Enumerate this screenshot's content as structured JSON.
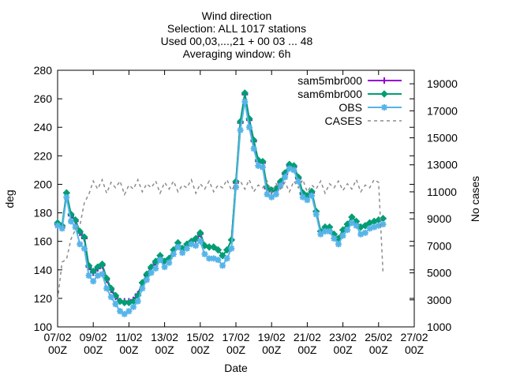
{
  "chart_data": {
    "type": "line",
    "title_lines": [
      "Wind direction",
      "Selection: ALL   1017 stations",
      "Used 00,03,...,21 + 00 03 ... 48",
      "Averaging window:  6h"
    ],
    "xlabel": "Date",
    "ylabel": "deg",
    "y2label": "No cases",
    "x_unit": "day",
    "xlim": [
      7,
      27
    ],
    "ylim": [
      100,
      280
    ],
    "y2lim": [
      1000,
      20000
    ],
    "x_ticks": [
      7,
      9,
      11,
      13,
      15,
      17,
      19,
      21,
      23,
      25,
      27
    ],
    "x_tick_labels": [
      [
        "07/02",
        "00Z"
      ],
      [
        "09/02",
        "00Z"
      ],
      [
        "11/02",
        "00Z"
      ],
      [
        "13/02",
        "00Z"
      ],
      [
        "15/02",
        "00Z"
      ],
      [
        "17/02",
        "00Z"
      ],
      [
        "19/02",
        "00Z"
      ],
      [
        "21/02",
        "00Z"
      ],
      [
        "23/02",
        "00Z"
      ],
      [
        "25/02",
        "00Z"
      ],
      [
        "27/02",
        "00Z"
      ]
    ],
    "y_ticks": [
      100,
      120,
      140,
      160,
      180,
      200,
      220,
      240,
      260,
      280
    ],
    "y2_ticks": [
      1000,
      3000,
      5000,
      7000,
      9000,
      11000,
      13000,
      15000,
      17000,
      19000
    ],
    "legend_position": "top-right",
    "grid": false,
    "series": [
      {
        "name": "sam5mbr000",
        "color": "#9400d3",
        "marker": "plus",
        "axis": "y",
        "x": [
          7.0,
          7.25,
          7.5,
          7.75,
          8.0,
          8.25,
          8.5,
          8.75,
          9.0,
          9.25,
          9.5,
          9.75,
          10.0,
          10.25,
          10.5,
          10.75,
          11.0,
          11.25,
          11.5,
          11.75,
          12.0,
          12.25,
          12.5,
          12.75,
          13.0,
          13.25,
          13.5,
          13.75,
          14.0,
          14.25,
          14.5,
          14.75,
          15.0,
          15.25,
          15.5,
          15.75,
          16.0,
          16.25,
          16.5,
          16.75,
          17.0,
          17.25,
          17.5,
          17.75,
          18.0,
          18.25,
          18.5,
          18.75,
          19.0,
          19.25,
          19.5,
          19.75,
          20.0,
          20.25,
          20.5,
          20.75,
          21.0,
          21.25,
          21.5,
          21.75,
          22.0,
          22.25,
          22.5,
          22.75,
          23.0,
          23.25,
          23.5,
          23.75,
          24.0,
          24.25,
          24.5,
          24.75,
          25.0,
          25.25
        ],
        "values": [
          172,
          170,
          194,
          178,
          174,
          166,
          162,
          142,
          138,
          141,
          143,
          133,
          126,
          121,
          118,
          118,
          118,
          119,
          123,
          131,
          136,
          141,
          145,
          150,
          146,
          148,
          154,
          159,
          155,
          158,
          160,
          161,
          165,
          157,
          156,
          156,
          154,
          150,
          154,
          161,
          201,
          243,
          263,
          245,
          230,
          216,
          215,
          197,
          195,
          196,
          201,
          207,
          213,
          212,
          204,
          193,
          191,
          194,
          181,
          167,
          170,
          170,
          165,
          162,
          168,
          172,
          177,
          174,
          170,
          171,
          173,
          174,
          175,
          176
        ]
      },
      {
        "name": "sam6mbr000",
        "color": "#009e73",
        "marker": "diamond",
        "axis": "y",
        "x": [
          7.0,
          7.25,
          7.5,
          7.75,
          8.0,
          8.25,
          8.5,
          8.75,
          9.0,
          9.25,
          9.5,
          9.75,
          10.0,
          10.25,
          10.5,
          10.75,
          11.0,
          11.25,
          11.5,
          11.75,
          12.0,
          12.25,
          12.5,
          12.75,
          13.0,
          13.25,
          13.5,
          13.75,
          14.0,
          14.25,
          14.5,
          14.75,
          15.0,
          15.25,
          15.5,
          15.75,
          16.0,
          16.25,
          16.5,
          16.75,
          17.0,
          17.25,
          17.5,
          17.75,
          18.0,
          18.25,
          18.5,
          18.75,
          19.0,
          19.25,
          19.5,
          19.75,
          20.0,
          20.25,
          20.5,
          20.75,
          21.0,
          21.25,
          21.5,
          21.75,
          22.0,
          22.25,
          22.5,
          22.75,
          23.0,
          23.25,
          23.5,
          23.75,
          24.0,
          24.25,
          24.5,
          24.75,
          25.0,
          25.25
        ],
        "values": [
          173,
          171,
          194,
          179,
          175,
          167,
          163,
          143,
          139,
          142,
          144,
          134,
          127,
          122,
          118,
          117,
          117,
          118,
          122,
          131,
          137,
          142,
          146,
          150,
          146,
          148,
          154,
          159,
          155,
          158,
          160,
          162,
          166,
          157,
          156,
          156,
          154,
          150,
          154,
          161,
          202,
          244,
          264,
          246,
          231,
          217,
          216,
          198,
          196,
          197,
          202,
          208,
          214,
          213,
          205,
          194,
          192,
          195,
          181,
          167,
          170,
          170,
          165,
          162,
          168,
          172,
          177,
          174,
          170,
          171,
          173,
          174,
          175,
          176
        ]
      },
      {
        "name": "OBS",
        "color": "#56b4e9",
        "marker": "star",
        "axis": "y",
        "x": [
          7.0,
          7.25,
          7.5,
          7.75,
          8.0,
          8.25,
          8.5,
          8.75,
          9.0,
          9.25,
          9.5,
          9.75,
          10.0,
          10.25,
          10.5,
          10.75,
          11.0,
          11.25,
          11.5,
          11.75,
          12.0,
          12.25,
          12.5,
          12.75,
          13.0,
          13.25,
          13.5,
          13.75,
          14.0,
          14.25,
          14.5,
          14.75,
          15.0,
          15.25,
          15.5,
          15.75,
          16.0,
          16.25,
          16.5,
          16.75,
          17.0,
          17.25,
          17.5,
          17.75,
          18.0,
          18.25,
          18.5,
          18.75,
          19.0,
          19.25,
          19.5,
          19.75,
          20.0,
          20.25,
          20.5,
          20.75,
          21.0,
          21.25,
          21.5,
          21.75,
          22.0,
          22.25,
          22.5,
          22.75,
          23.0,
          23.25,
          23.5,
          23.75,
          24.0,
          24.25,
          24.5,
          24.75,
          25.0,
          25.25
        ],
        "values": [
          171,
          169,
          191,
          174,
          170,
          158,
          155,
          136,
          132,
          136,
          137,
          127,
          121,
          116,
          111,
          109,
          111,
          114,
          118,
          127,
          133,
          138,
          141,
          147,
          142,
          145,
          151,
          156,
          152,
          155,
          158,
          157,
          160,
          151,
          148,
          148,
          147,
          143,
          148,
          155,
          198,
          238,
          258,
          240,
          225,
          213,
          212,
          193,
          191,
          193,
          199,
          205,
          211,
          210,
          202,
          191,
          189,
          192,
          179,
          165,
          167,
          167,
          162,
          158,
          164,
          168,
          173,
          171,
          165,
          166,
          169,
          170,
          171,
          172
        ]
      },
      {
        "name": "CASES",
        "color": "#8c8c8c",
        "marker": "none",
        "dash": true,
        "axis": "y2",
        "x": [
          7.0,
          7.25,
          7.5,
          7.75,
          8.0,
          8.25,
          8.5,
          8.75,
          9.0,
          9.25,
          9.5,
          9.75,
          10.0,
          10.25,
          10.5,
          10.75,
          11.0,
          11.25,
          11.5,
          11.75,
          12.0,
          12.25,
          12.5,
          12.75,
          13.0,
          13.25,
          13.5,
          13.75,
          14.0,
          14.25,
          14.5,
          14.75,
          15.0,
          15.25,
          15.5,
          15.75,
          16.0,
          16.25,
          16.5,
          16.75,
          17.0,
          17.25,
          17.5,
          17.75,
          18.0,
          18.25,
          18.5,
          18.75,
          19.0,
          19.25,
          19.5,
          19.75,
          20.0,
          20.25,
          20.5,
          20.75,
          21.0,
          21.25,
          21.5,
          21.75,
          22.0,
          22.25,
          22.5,
          22.75,
          23.0,
          23.25,
          23.5,
          23.75,
          24.0,
          24.25,
          24.5,
          24.75,
          25.0,
          25.25
        ],
        "values": [
          3000,
          5800,
          6000,
          7500,
          8200,
          8500,
          10200,
          10800,
          11800,
          11200,
          11900,
          10900,
          11700,
          11300,
          11800,
          10800,
          11500,
          11200,
          11900,
          11000,
          11600,
          11300,
          11800,
          10900,
          11700,
          11200,
          11800,
          11000,
          11500,
          11300,
          11900,
          10900,
          11600,
          11200,
          11800,
          11000,
          11500,
          11300,
          11900,
          11100,
          11600,
          11800,
          11200,
          11900,
          11000,
          11500,
          11300,
          11800,
          10900,
          11600,
          11200,
          11700,
          11000,
          11800,
          11300,
          11900,
          11000,
          11500,
          11200,
          11800,
          10900,
          11600,
          11300,
          11800,
          11100,
          11600,
          11200,
          11900,
          11000,
          11500,
          11300,
          11900,
          11700,
          5000
        ]
      }
    ]
  }
}
